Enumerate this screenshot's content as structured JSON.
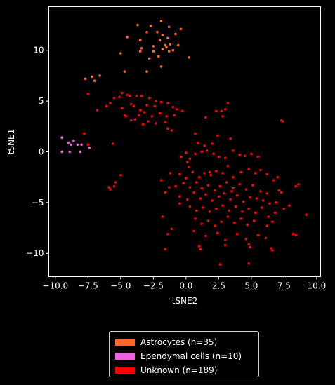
{
  "chart_data": {
    "type": "scatter",
    "xlabel": "tSNE2",
    "ylabel": "tSNE1",
    "xlim": [
      -10.5,
      10.3
    ],
    "ylim": [
      -12.3,
      14.3
    ],
    "xticks": [
      -10.0,
      -7.5,
      -5.0,
      -2.5,
      0.0,
      2.5,
      5.0,
      7.5,
      10.0
    ],
    "xtick_labels": [
      "−10.0",
      "−7.5",
      "−5.0",
      "−2.5",
      "0.0",
      "2.5",
      "5.0",
      "7.5",
      "10.0"
    ],
    "yticks": [
      -10,
      -5,
      0,
      5,
      10
    ],
    "ytick_labels": [
      "−10",
      "−5",
      "0",
      "5",
      "10"
    ],
    "grid": false,
    "legend_position": "below",
    "series": [
      {
        "name": "Astrocytes (n=35)",
        "color": "#ff6a2b",
        "points": [
          [
            -3.7,
            12.5
          ],
          [
            -2.7,
            12.4
          ],
          [
            -1.9,
            12.9
          ],
          [
            -1.3,
            12.3
          ],
          [
            -0.4,
            12.1
          ],
          [
            -0.8,
            11.6
          ],
          [
            -3.0,
            11.8
          ],
          [
            -4.5,
            11.3
          ],
          [
            -2.2,
            11.8
          ],
          [
            -1.8,
            11.5
          ],
          [
            -3.5,
            11.0
          ],
          [
            -2.0,
            11.0
          ],
          [
            -1.4,
            11.2
          ],
          [
            -2.5,
            10.4
          ],
          [
            -1.6,
            10.5
          ],
          [
            -1.2,
            10.6
          ],
          [
            -0.6,
            10.5
          ],
          [
            -1.5,
            10.3
          ],
          [
            -1.8,
            10.1
          ],
          [
            -3.4,
            10.2
          ],
          [
            -3.5,
            9.9
          ],
          [
            -1.3,
            9.9
          ],
          [
            -1.0,
            10.0
          ],
          [
            -5.0,
            9.7
          ],
          [
            -2.5,
            9.9
          ],
          [
            0.2,
            9.3
          ],
          [
            -2.8,
            9.2
          ],
          [
            -2.1,
            9.4
          ],
          [
            -1.9,
            8.4
          ],
          [
            -3.0,
            7.9
          ],
          [
            -4.7,
            7.9
          ],
          [
            -7.7,
            7.2
          ],
          [
            -7.2,
            7.4
          ],
          [
            -6.6,
            7.5
          ],
          [
            -7.0,
            7.0
          ]
        ]
      },
      {
        "name": "Ependymal cells (n=10)",
        "color": "#ee60e0",
        "points": [
          [
            -9.5,
            1.4
          ],
          [
            -9.0,
            0.9
          ],
          [
            -8.8,
            0.7
          ],
          [
            -8.6,
            1.1
          ],
          [
            -8.3,
            0.7
          ],
          [
            -8.0,
            0.7
          ],
          [
            -9.5,
            0.0
          ],
          [
            -8.9,
            0.0
          ],
          [
            -8.1,
            0.0
          ],
          [
            -7.4,
            0.4
          ]
        ]
      },
      {
        "name": "Unknown (n=189)",
        "color": "#ff0000",
        "points": [
          [
            -7.5,
            5.7
          ],
          [
            -6.8,
            4.1
          ],
          [
            -6.1,
            4.5
          ],
          [
            -5.8,
            4.8
          ],
          [
            -5.5,
            5.3
          ],
          [
            -5.1,
            5.4
          ],
          [
            -4.9,
            5.8
          ],
          [
            -4.5,
            5.6
          ],
          [
            -4.3,
            5.5
          ],
          [
            -4.2,
            4.7
          ],
          [
            -4.0,
            4.5
          ],
          [
            -3.8,
            5.5
          ],
          [
            -3.4,
            5.5
          ],
          [
            -2.8,
            5.3
          ],
          [
            -3.0,
            4.6
          ],
          [
            -2.4,
            4.5
          ],
          [
            -2.3,
            5.0
          ],
          [
            -1.9,
            4.9
          ],
          [
            -1.4,
            4.8
          ],
          [
            -1.0,
            4.4
          ],
          [
            -0.7,
            4.2
          ],
          [
            -0.3,
            4.0
          ],
          [
            -0.9,
            3.6
          ],
          [
            -1.5,
            3.5
          ],
          [
            -2.0,
            3.8
          ],
          [
            -2.6,
            3.5
          ],
          [
            -3.2,
            3.9
          ],
          [
            -3.5,
            4.1
          ],
          [
            -3.6,
            3.6
          ],
          [
            -3.9,
            3.2
          ],
          [
            -4.2,
            3.1
          ],
          [
            -4.7,
            3.6
          ],
          [
            -4.9,
            4.3
          ],
          [
            -4.6,
            3.5
          ],
          [
            -2.9,
            3.0
          ],
          [
            -2.3,
            2.8
          ],
          [
            -1.6,
            2.9
          ],
          [
            -1.4,
            2.3
          ],
          [
            -1.1,
            2.1
          ],
          [
            -3.3,
            2.7
          ],
          [
            -5.6,
            0.8
          ],
          [
            -7.5,
            0.7
          ],
          [
            -7.8,
            1.8
          ],
          [
            -5.0,
            -2.3
          ],
          [
            -5.4,
            -3.0
          ],
          [
            -5.5,
            -3.4
          ],
          [
            -5.8,
            -3.7
          ],
          [
            -5.9,
            -3.5
          ],
          [
            -1.8,
            -6.4
          ],
          [
            -1.1,
            -7.6
          ],
          [
            -0.5,
            -5.1
          ],
          [
            -1.4,
            -8.1
          ],
          [
            -1.6,
            -4.0
          ],
          [
            -1.3,
            -3.5
          ],
          [
            -1.9,
            -2.8
          ],
          [
            -1.2,
            -2.1
          ],
          [
            -0.4,
            -0.5
          ],
          [
            0.1,
            -1.0
          ],
          [
            0.7,
            1.8
          ],
          [
            0.9,
            0.9
          ],
          [
            1.4,
            0.6
          ],
          [
            2.0,
            0.8
          ],
          [
            2.4,
            1.6
          ],
          [
            1.5,
            3.4
          ],
          [
            2.3,
            4.0
          ],
          [
            2.7,
            4.0
          ],
          [
            3.0,
            4.2
          ],
          [
            3.2,
            4.8
          ],
          [
            2.8,
            3.5
          ],
          [
            3.4,
            1.3
          ],
          [
            0.0,
            -0.1
          ],
          [
            0.3,
            -0.7
          ],
          [
            0.7,
            -0.2
          ],
          [
            1.2,
            0.0
          ],
          [
            1.6,
            0.1
          ],
          [
            2.1,
            -0.2
          ],
          [
            2.5,
            -0.5
          ],
          [
            3.0,
            -0.6
          ],
          [
            3.6,
            0.1
          ],
          [
            4.1,
            -0.3
          ],
          [
            4.5,
            -0.4
          ],
          [
            5.0,
            -0.2
          ],
          [
            5.5,
            -0.5
          ],
          [
            -0.5,
            -2.2
          ],
          [
            0.0,
            -2.6
          ],
          [
            0.5,
            -2.0
          ],
          [
            1.0,
            -2.5
          ],
          [
            1.4,
            -2.1
          ],
          [
            1.9,
            -2.3
          ],
          [
            2.3,
            -1.9
          ],
          [
            2.8,
            -2.1
          ],
          [
            3.2,
            -1.4
          ],
          [
            3.6,
            -2.5
          ],
          [
            4.2,
            -2.0
          ],
          [
            4.8,
            -1.7
          ],
          [
            5.3,
            -2.1
          ],
          [
            5.7,
            -1.8
          ],
          [
            6.2,
            -2.2
          ],
          [
            6.7,
            -2.8
          ],
          [
            7.0,
            -2.5
          ],
          [
            -0.8,
            -3.4
          ],
          [
            -0.2,
            -3.1
          ],
          [
            0.3,
            -3.5
          ],
          [
            0.8,
            -3.0
          ],
          [
            1.2,
            -3.6
          ],
          [
            1.7,
            -3.3
          ],
          [
            2.2,
            -3.8
          ],
          [
            2.6,
            -3.4
          ],
          [
            3.1,
            -3.0
          ],
          [
            3.6,
            -3.6
          ],
          [
            4.1,
            -3.2
          ],
          [
            4.6,
            -3.7
          ],
          [
            5.1,
            -3.3
          ],
          [
            5.7,
            -3.9
          ],
          [
            6.2,
            -4.1
          ],
          [
            7.1,
            -3.8
          ],
          [
            7.3,
            -4.0
          ],
          [
            8.4,
            -3.4
          ],
          [
            8.6,
            -3.2
          ],
          [
            -0.5,
            -4.4
          ],
          [
            0.1,
            -4.7
          ],
          [
            0.6,
            -4.0
          ],
          [
            1.1,
            -4.6
          ],
          [
            1.5,
            -4.2
          ],
          [
            2.0,
            -4.8
          ],
          [
            2.5,
            -4.4
          ],
          [
            2.9,
            -4.1
          ],
          [
            3.4,
            -4.7
          ],
          [
            3.9,
            -4.3
          ],
          [
            4.4,
            -4.9
          ],
          [
            4.9,
            -4.5
          ],
          [
            5.4,
            -4.6
          ],
          [
            5.9,
            -4.8
          ],
          [
            6.4,
            -5.1
          ],
          [
            6.9,
            -5.0
          ],
          [
            7.5,
            -5.6
          ],
          [
            7.9,
            -5.3
          ],
          [
            9.2,
            -6.2
          ],
          [
            0.3,
            -5.4
          ],
          [
            0.8,
            -5.8
          ],
          [
            1.3,
            -5.5
          ],
          [
            1.8,
            -5.9
          ],
          [
            2.3,
            -5.6
          ],
          [
            2.8,
            -5.3
          ],
          [
            3.3,
            -5.8
          ],
          [
            3.8,
            -5.4
          ],
          [
            4.3,
            -5.9
          ],
          [
            4.8,
            -5.6
          ],
          [
            5.3,
            -6.0
          ],
          [
            5.8,
            -5.5
          ],
          [
            6.3,
            -6.4
          ],
          [
            6.8,
            -6.0
          ],
          [
            0.7,
            -6.6
          ],
          [
            1.2,
            -7.1
          ],
          [
            1.7,
            -6.8
          ],
          [
            2.2,
            -7.3
          ],
          [
            2.7,
            -6.9
          ],
          [
            3.2,
            -6.4
          ],
          [
            3.7,
            -7.0
          ],
          [
            4.2,
            -6.6
          ],
          [
            4.7,
            -7.2
          ],
          [
            5.2,
            -6.8
          ],
          [
            6.2,
            -7.3
          ],
          [
            6.6,
            -6.9
          ],
          [
            0.6,
            -7.8
          ],
          [
            1.5,
            -8.3
          ],
          [
            2.4,
            -8.0
          ],
          [
            3.0,
            -8.7
          ],
          [
            3.9,
            -8.1
          ],
          [
            4.6,
            -8.6
          ],
          [
            5.5,
            -8.2
          ],
          [
            6.1,
            -8.5
          ],
          [
            8.2,
            -8.1
          ],
          [
            8.4,
            -8.2
          ],
          [
            1.0,
            -9.3
          ],
          [
            1.1,
            -9.6
          ],
          [
            3.0,
            -9.2
          ],
          [
            4.8,
            -9.1
          ],
          [
            4.9,
            -9.4
          ],
          [
            6.5,
            -9.5
          ],
          [
            6.6,
            -9.7
          ],
          [
            -1.6,
            -9.6
          ],
          [
            2.6,
            -11.1
          ],
          [
            4.8,
            -11.0
          ],
          [
            7.3,
            3.1
          ],
          [
            7.4,
            3.0
          ],
          [
            1.8,
            -2.0
          ],
          [
            0.2,
            -1.5
          ],
          [
            3.5,
            -3.9
          ]
        ]
      }
    ]
  }
}
